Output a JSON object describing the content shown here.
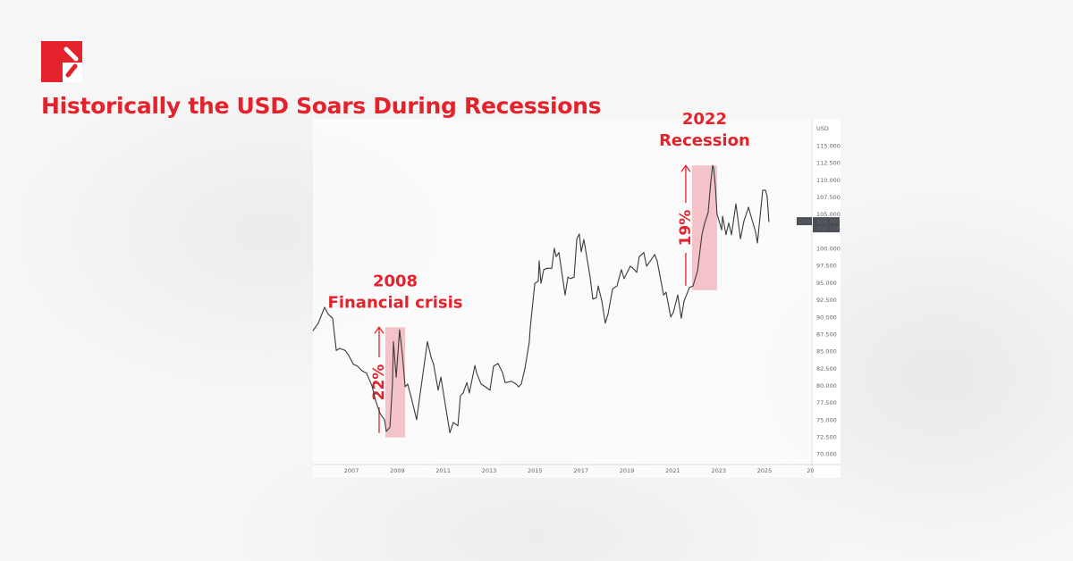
{
  "header": {
    "title": "Historically the USD Soars During Recessions",
    "brand_color": "#e3222b"
  },
  "chart_data": {
    "type": "line",
    "title": "",
    "xlabel": "",
    "ylabel": "USD",
    "xlim": [
      2005.3,
      2026.2
    ],
    "ylim": [
      69,
      117.5
    ],
    "grid": false,
    "x_ticks": [
      "2007",
      "2009",
      "2011",
      "2013",
      "2015",
      "2017",
      "2019",
      "2021",
      "2023",
      "2025",
      "20"
    ],
    "y_ticks": [
      "115.000",
      "112.500",
      "110.000",
      "107.500",
      "105.000",
      "100.000",
      "97.500",
      "95.000",
      "92.500",
      "90.000",
      "87.500",
      "85.000",
      "82.500",
      "80.000",
      "77.500",
      "75.000",
      "72.500",
      "70.000"
    ],
    "series": [
      {
        "name": "DXY",
        "color": "#3a3a3a",
        "points": [
          [
            2005.33,
            88.0
          ],
          [
            2005.56,
            89.1
          ],
          [
            2005.83,
            91.4
          ],
          [
            2005.99,
            90.4
          ],
          [
            2006.18,
            89.8
          ],
          [
            2006.34,
            85.1
          ],
          [
            2006.49,
            85.4
          ],
          [
            2006.73,
            85.1
          ],
          [
            2006.88,
            84.4
          ],
          [
            2007.08,
            83.1
          ],
          [
            2007.27,
            82.8
          ],
          [
            2007.47,
            82.1
          ],
          [
            2007.66,
            81.8
          ],
          [
            2007.9,
            79.9
          ],
          [
            2008.05,
            77.8
          ],
          [
            2008.25,
            75.9
          ],
          [
            2008.44,
            75.0
          ],
          [
            2008.52,
            73.3
          ],
          [
            2008.68,
            73.9
          ],
          [
            2008.79,
            80.2
          ],
          [
            2008.83,
            86.4
          ],
          [
            2008.95,
            81.2
          ],
          [
            2009.1,
            88.1
          ],
          [
            2009.22,
            84.5
          ],
          [
            2009.34,
            79.8
          ],
          [
            2009.45,
            80.2
          ],
          [
            2009.61,
            78.2
          ],
          [
            2009.84,
            75.0
          ],
          [
            2010.0,
            78.9
          ],
          [
            2010.31,
            86.4
          ],
          [
            2010.47,
            84.1
          ],
          [
            2010.58,
            83.1
          ],
          [
            2010.78,
            79.3
          ],
          [
            2010.9,
            81.2
          ],
          [
            2011.09,
            77.2
          ],
          [
            2011.29,
            73.1
          ],
          [
            2011.44,
            74.6
          ],
          [
            2011.64,
            74.1
          ],
          [
            2011.75,
            78.5
          ],
          [
            2011.87,
            78.9
          ],
          [
            2012.03,
            80.4
          ],
          [
            2012.14,
            78.9
          ],
          [
            2012.38,
            82.9
          ],
          [
            2012.45,
            81.9
          ],
          [
            2012.65,
            80.2
          ],
          [
            2012.84,
            79.8
          ],
          [
            2013.04,
            79.3
          ],
          [
            2013.19,
            82.8
          ],
          [
            2013.39,
            83.2
          ],
          [
            2013.58,
            81.9
          ],
          [
            2013.7,
            80.4
          ],
          [
            2013.97,
            80.6
          ],
          [
            2014.17,
            80.2
          ],
          [
            2014.28,
            79.8
          ],
          [
            2014.4,
            80.2
          ],
          [
            2014.56,
            82.5
          ],
          [
            2014.75,
            86.3
          ],
          [
            2014.79,
            88.4
          ],
          [
            2014.99,
            94.9
          ],
          [
            2015.14,
            95.2
          ],
          [
            2015.18,
            98.2
          ],
          [
            2015.26,
            94.9
          ],
          [
            2015.38,
            96.9
          ],
          [
            2015.53,
            97.1
          ],
          [
            2015.73,
            97.1
          ],
          [
            2015.84,
            100.0
          ],
          [
            2015.92,
            98.8
          ],
          [
            2016.04,
            99.4
          ],
          [
            2016.31,
            93.2
          ],
          [
            2016.43,
            95.8
          ],
          [
            2016.54,
            95.6
          ],
          [
            2016.7,
            95.8
          ],
          [
            2016.82,
            101.4
          ],
          [
            2016.93,
            102.1
          ],
          [
            2017.01,
            99.5
          ],
          [
            2017.13,
            101.3
          ],
          [
            2017.4,
            95.8
          ],
          [
            2017.52,
            92.6
          ],
          [
            2017.67,
            92.8
          ],
          [
            2017.75,
            94.5
          ],
          [
            2017.91,
            92.3
          ],
          [
            2018.06,
            89.1
          ],
          [
            2018.18,
            90.4
          ],
          [
            2018.38,
            94.1
          ],
          [
            2018.57,
            94.5
          ],
          [
            2018.76,
            96.9
          ],
          [
            2018.88,
            95.6
          ],
          [
            2019.15,
            97.4
          ],
          [
            2019.27,
            97.1
          ],
          [
            2019.43,
            96.5
          ],
          [
            2019.54,
            98.8
          ],
          [
            2019.74,
            99.4
          ],
          [
            2019.86,
            97.4
          ],
          [
            2020.01,
            98.1
          ],
          [
            2020.21,
            99.1
          ],
          [
            2020.32,
            98.2
          ],
          [
            2020.6,
            93.2
          ],
          [
            2020.71,
            93.6
          ],
          [
            2020.91,
            90.0
          ],
          [
            2021.02,
            90.6
          ],
          [
            2021.22,
            93.2
          ],
          [
            2021.37,
            89.8
          ],
          [
            2021.49,
            92.3
          ],
          [
            2021.73,
            94.3
          ],
          [
            2021.88,
            94.5
          ],
          [
            2022.08,
            96.7
          ],
          [
            2022.27,
            102.0
          ],
          [
            2022.39,
            103.7
          ],
          [
            2022.54,
            105.2
          ],
          [
            2022.66,
            109.8
          ],
          [
            2022.74,
            112.1
          ],
          [
            2022.78,
            111.7
          ],
          [
            2022.86,
            108.9
          ],
          [
            2022.93,
            105.0
          ],
          [
            2023.13,
            102.7
          ],
          [
            2023.17,
            104.7
          ],
          [
            2023.32,
            102.0
          ],
          [
            2023.44,
            103.7
          ],
          [
            2023.56,
            102.0
          ],
          [
            2023.75,
            106.5
          ],
          [
            2023.95,
            101.4
          ],
          [
            2024.1,
            104.0
          ],
          [
            2024.3,
            106.0
          ],
          [
            2024.41,
            104.7
          ],
          [
            2024.61,
            102.4
          ],
          [
            2024.69,
            100.8
          ],
          [
            2024.92,
            108.5
          ],
          [
            2025.04,
            108.5
          ],
          [
            2025.11,
            107.6
          ],
          [
            2025.19,
            103.9
          ]
        ]
      }
    ],
    "price_tag": {
      "symbol": "DXY",
      "value": "103.903",
      "countdown": "20d 15h",
      "color": "#4a4f57"
    },
    "annotations": [
      {
        "line1": "2008",
        "line2": "Financial crisis",
        "change": "22%",
        "x_range": [
          2008.48,
          2009.34
        ],
        "y_range": [
          72.4,
          88.5
        ],
        "shade_color": "#f2b8bf"
      },
      {
        "line1": "2022",
        "line2": "Recession",
        "change": "19%",
        "x_range": [
          2021.84,
          2022.93
        ],
        "y_range": [
          93.9,
          112.1
        ],
        "shade_color": "#f2b8bf"
      }
    ]
  }
}
